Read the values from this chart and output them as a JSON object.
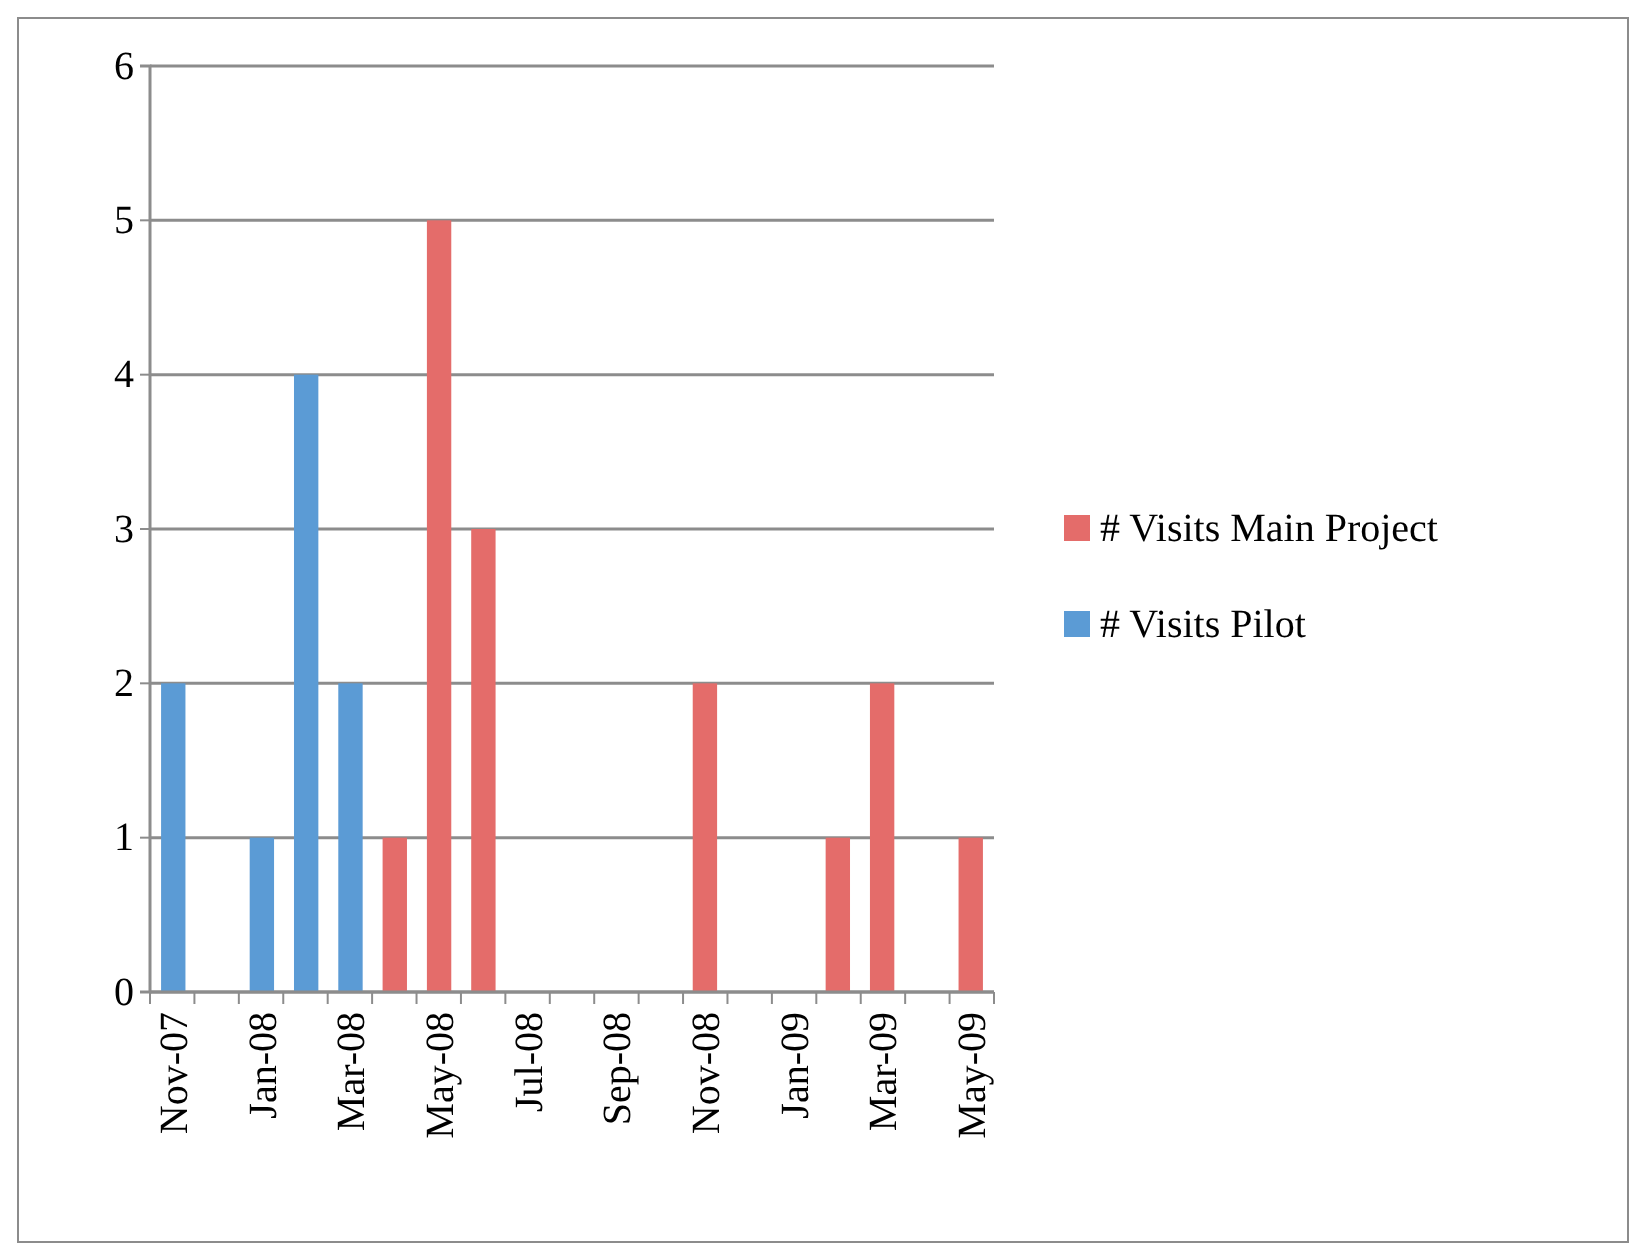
{
  "chart_data": {
    "type": "bar",
    "categories": [
      "Nov-07",
      null,
      "Jan-08",
      null,
      "Mar-08",
      null,
      "May-08",
      null,
      "Jul-08",
      null,
      "Sep-08",
      null,
      "Nov-08",
      null,
      "Jan-09",
      null,
      "Mar-09",
      null,
      "May-09"
    ],
    "series": [
      {
        "name": "# Visits Main Project",
        "color": "#e46c6a",
        "values": [
          null,
          null,
          null,
          null,
          null,
          1,
          5,
          3,
          null,
          null,
          null,
          null,
          2,
          null,
          null,
          1,
          2,
          null,
          1
        ]
      },
      {
        "name": "# Visits Pilot",
        "color": "#5b9bd5",
        "values": [
          2,
          null,
          1,
          4,
          2,
          null,
          null,
          null,
          null,
          null,
          null,
          null,
          null,
          null,
          null,
          null,
          null,
          null,
          null
        ]
      }
    ],
    "ylim": [
      0,
      6
    ],
    "yticks": [
      0,
      1,
      2,
      3,
      4,
      5,
      6
    ],
    "grid": "y",
    "legend": "right"
  }
}
